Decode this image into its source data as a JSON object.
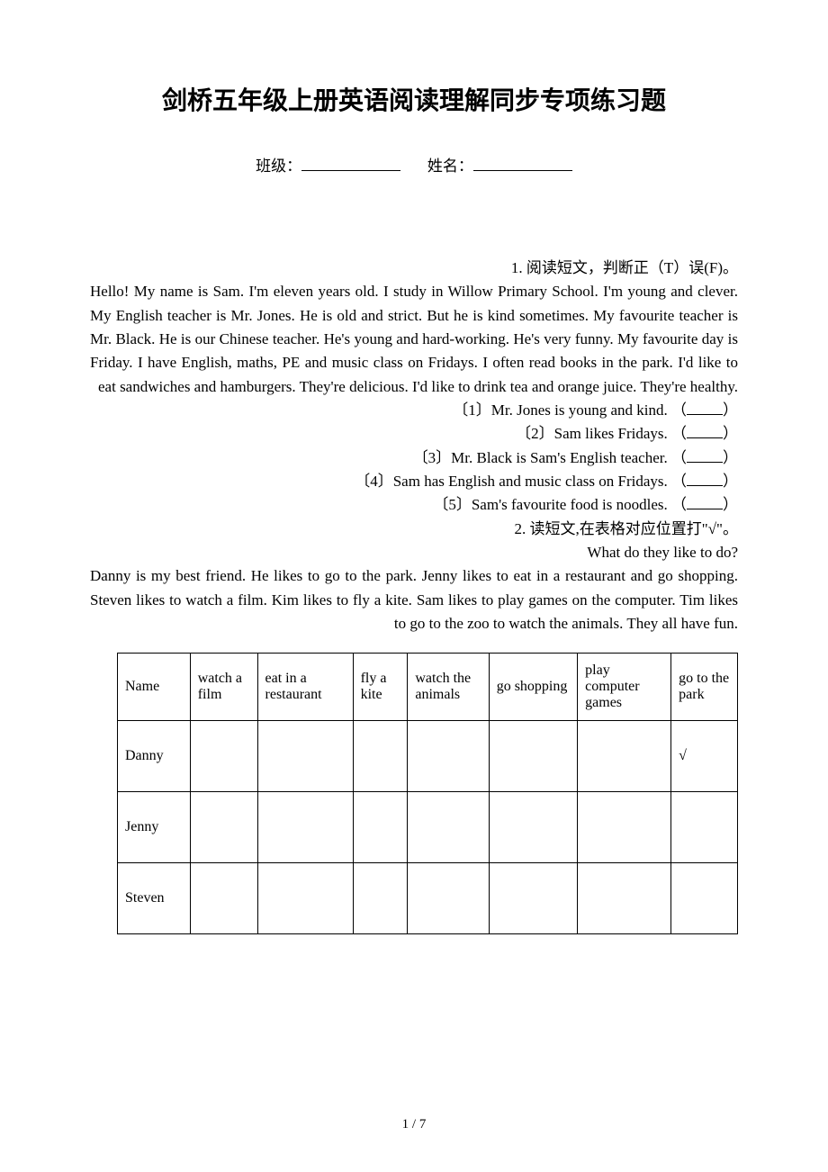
{
  "title": "剑桥五年级上册英语阅读理解同步专项练习题",
  "meta": {
    "class_label": "班级：",
    "name_label": "姓名："
  },
  "q1": {
    "heading": "1. 阅读短文，判断正（T）误(F)。",
    "passage": "Hello! My name is Sam. I'm eleven years old. I study in Willow Primary School. I'm young and clever. My English teacher is Mr. Jones. He is old and strict. But he is kind sometimes. My favourite teacher is Mr. Black. He is our Chinese teacher. He's young and hard-working. He's very funny. My favourite day is Friday. I have English, maths, PE and music class on Fridays. I often read books in the park. I'd like to eat sandwiches and hamburgers. They're delicious. I'd like to drink tea and orange juice. They're healthy.",
    "items": [
      "〔1〕Mr. Jones is young and kind.",
      "〔2〕Sam likes Fridays.",
      "〔3〕Mr. Black is Sam's English teacher.",
      "〔4〕Sam has English and music class on Fridays.",
      "〔5〕Sam's favourite food is noodles."
    ]
  },
  "q2": {
    "heading": "2. 读短文,在表格对应位置打\"√\"。",
    "subheading": "What do they like to do?",
    "passage": "Danny is my best friend. He likes to go to the park. Jenny likes to eat in a restaurant and go shopping. Steven likes to watch a film. Kim likes to fly a kite. Sam likes to play games on the computer. Tim likes to go to the zoo to watch the animals. They all have fun."
  },
  "table": {
    "columns": [
      "Name",
      "watch a film",
      "eat in a restaurant",
      "fly a kite",
      "watch the animals",
      "go shopping",
      "play computer games",
      "go to the park"
    ],
    "rows": [
      {
        "name": "Danny",
        "cells": [
          "",
          "",
          "",
          "",
          "",
          "",
          "√"
        ]
      },
      {
        "name": "Jenny",
        "cells": [
          "",
          "",
          "",
          "",
          "",
          "",
          ""
        ]
      },
      {
        "name": "Steven",
        "cells": [
          "",
          "",
          "",
          "",
          "",
          "",
          ""
        ]
      }
    ]
  },
  "page_number": "1 / 7"
}
